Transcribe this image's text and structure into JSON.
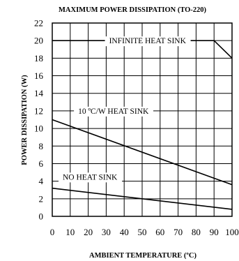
{
  "chart_data": {
    "type": "line",
    "title": "MAXIMUM POWER DISSIPATION (TO-220)",
    "xlabel": "AMBIENT TEMPERATURE (ºC)",
    "ylabel": "POWER DISSIPATION (W)",
    "xlim": [
      0,
      100
    ],
    "ylim": [
      0,
      22
    ],
    "x_ticks": [
      "0",
      "10",
      "20",
      "30",
      "40",
      "50",
      "60",
      "70",
      "80",
      "90",
      "100"
    ],
    "y_ticks": [
      "0",
      "2",
      "4",
      "6",
      "8",
      "10",
      "12",
      "14",
      "16",
      "18",
      "20",
      "22"
    ],
    "grid": true,
    "series": [
      {
        "name": "INFINITE HEAT SINK",
        "x": [
          0,
          90,
          100
        ],
        "y": [
          20,
          20,
          18
        ]
      },
      {
        "name": "10 ºC/W HEAT SINK",
        "x": [
          0,
          100
        ],
        "y": [
          11,
          3.6
        ]
      },
      {
        "name": "NO HEAT SINK",
        "x": [
          0,
          100
        ],
        "y": [
          3.2,
          0.8
        ]
      }
    ]
  }
}
